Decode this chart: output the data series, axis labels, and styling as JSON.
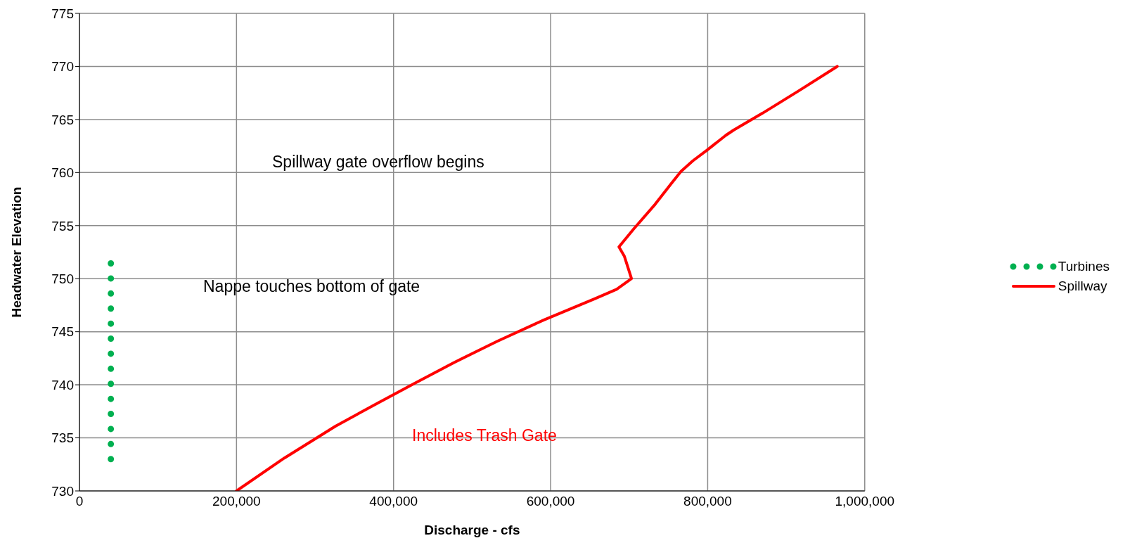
{
  "chart_data": {
    "type": "line",
    "xlabel": "Discharge - cfs",
    "ylabel": "Headwater Elevation",
    "xlim": [
      0,
      1000000
    ],
    "xticks": [
      0,
      {
        "value": 200000,
        "label": "200,000"
      },
      {
        "value": 400000,
        "label": "400,000"
      },
      {
        "value": 600000,
        "label": "600,000"
      },
      {
        "value": 800000,
        "label": "800,000"
      },
      {
        "value": 1000000,
        "label": "1,000,000"
      }
    ],
    "ylim": [
      730,
      775
    ],
    "yticks": [
      730,
      735,
      740,
      745,
      750,
      755,
      760,
      765,
      770,
      775
    ],
    "grid": true,
    "legend": "right",
    "series": [
      {
        "name": "Turbines",
        "color": "#00b050",
        "line_style": "dotted",
        "x": [
          40000,
          40000
        ],
        "values": [
          733,
          751.5
        ]
      },
      {
        "name": "Spillway",
        "color": "#ff0000",
        "line_style": "solid",
        "x": [
          200000,
          261000,
          326000,
          378000,
          426000,
          477000,
          532000,
          591000,
          656000,
          684000,
          703000,
          694000,
          687000,
          706000,
          733000,
          754000,
          766000,
          781000,
          799000,
          823000,
          833000,
          870000,
          916000,
          965000
        ],
        "values": [
          730,
          733.1,
          736.1,
          738.2,
          740.1,
          742.1,
          744.1,
          746.1,
          748.1,
          749,
          750,
          752.1,
          753,
          754.7,
          757,
          759,
          760.1,
          761.1,
          762.1,
          763.5,
          764,
          765.6,
          767.7,
          770
        ]
      }
    ],
    "annotations": [
      "Spillway gate overflow begins",
      "Nappe touches bottom of gate",
      "Includes Trash Gate"
    ]
  }
}
